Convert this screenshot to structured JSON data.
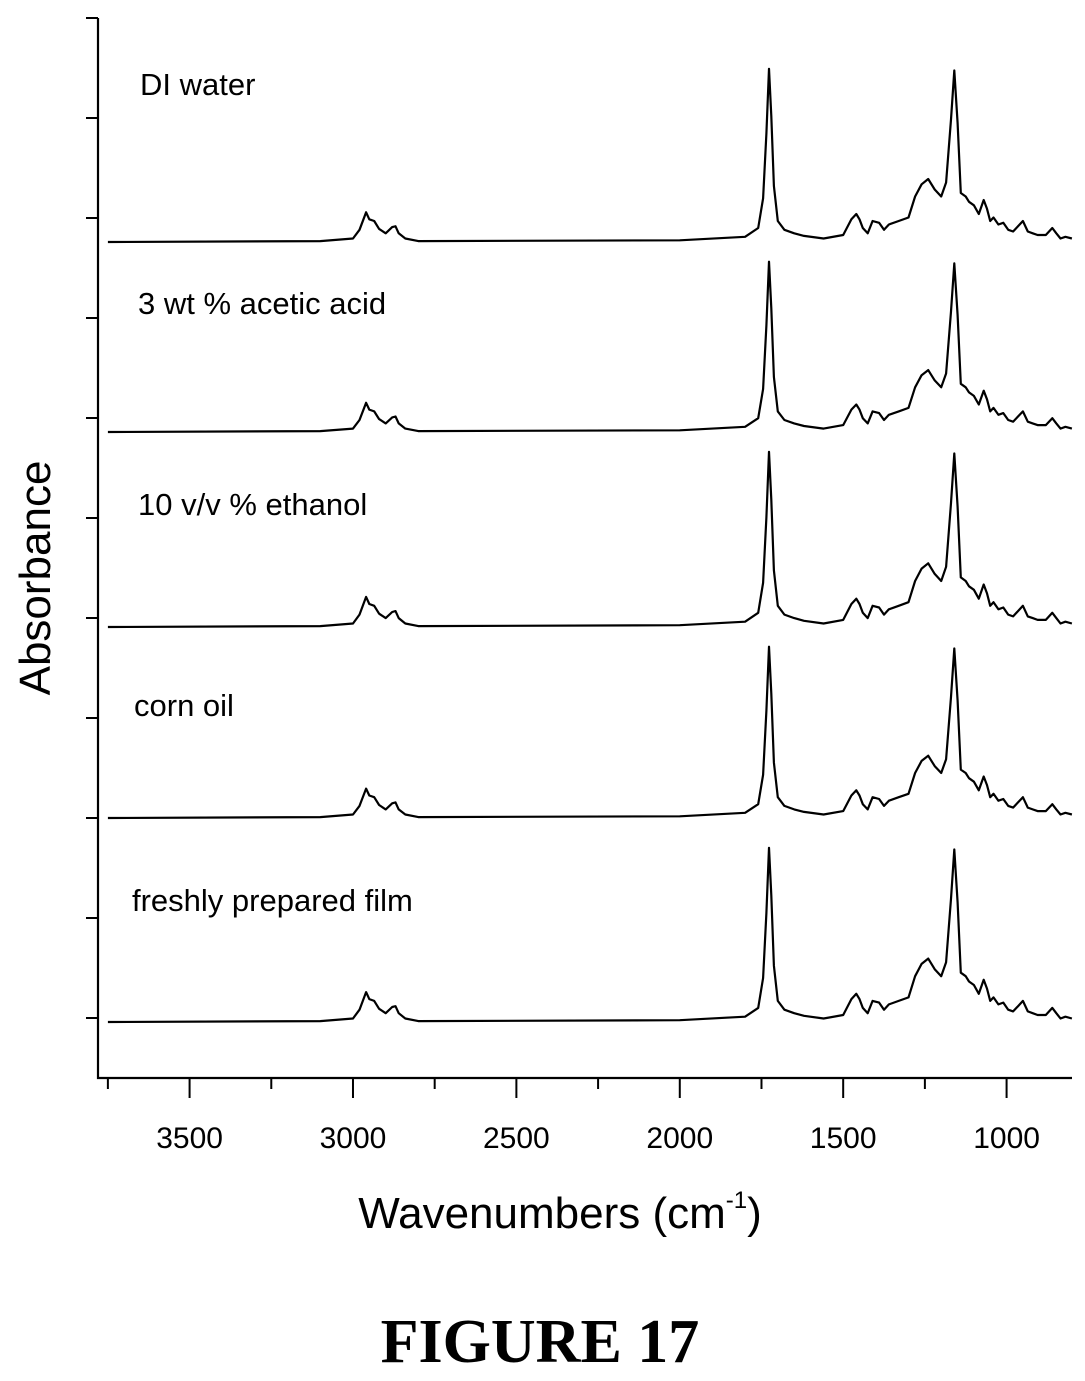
{
  "figure_title": "FIGURE 17",
  "chart_data": {
    "type": "line",
    "xlabel_main": "Wavenumbers (cm",
    "xlabel_sup": "-1",
    "xlabel_close": ")",
    "ylabel": "Absorbance",
    "xlim": [
      3750,
      800
    ],
    "x_reversed": true,
    "x_ticks": [
      "3500",
      "3000",
      "2500",
      "2000",
      "1500",
      "1000"
    ],
    "x_tick_values": [
      3500,
      3000,
      2500,
      2000,
      1500,
      1000
    ],
    "y_tick_labels_shown": false,
    "stacked_offset": true,
    "series": [
      {
        "name": "DI water"
      },
      {
        "name": "3 wt % acetic acid"
      },
      {
        "name": "10 v/v % ethanol"
      },
      {
        "name": "corn oil"
      },
      {
        "name": "freshly prepared film"
      }
    ],
    "spectrum_points": {
      "x": [
        3750,
        3100,
        3000,
        2980,
        2960,
        2950,
        2935,
        2920,
        2900,
        2880,
        2870,
        2860,
        2840,
        2800,
        2000,
        1800,
        1760,
        1745,
        1735,
        1727,
        1720,
        1712,
        1700,
        1680,
        1650,
        1620,
        1560,
        1500,
        1475,
        1460,
        1450,
        1440,
        1425,
        1410,
        1390,
        1375,
        1360,
        1330,
        1300,
        1280,
        1260,
        1240,
        1220,
        1200,
        1185,
        1170,
        1160,
        1150,
        1140,
        1125,
        1115,
        1100,
        1085,
        1070,
        1060,
        1050,
        1040,
        1025,
        1010,
        995,
        980,
        965,
        950,
        935,
        920,
        905,
        880,
        860,
        848,
        835,
        820,
        800
      ],
      "y": [
        0.0,
        0.005,
        0.02,
        0.07,
        0.17,
        0.13,
        0.12,
        0.075,
        0.05,
        0.085,
        0.09,
        0.05,
        0.02,
        0.005,
        0.01,
        0.03,
        0.08,
        0.25,
        0.62,
        0.99,
        0.72,
        0.32,
        0.12,
        0.07,
        0.05,
        0.035,
        0.02,
        0.04,
        0.13,
        0.16,
        0.13,
        0.08,
        0.05,
        0.12,
        0.11,
        0.07,
        0.1,
        0.12,
        0.14,
        0.26,
        0.33,
        0.36,
        0.3,
        0.26,
        0.34,
        0.7,
        0.98,
        0.68,
        0.28,
        0.26,
        0.23,
        0.21,
        0.16,
        0.24,
        0.19,
        0.12,
        0.14,
        0.1,
        0.11,
        0.07,
        0.06,
        0.09,
        0.12,
        0.06,
        0.05,
        0.04,
        0.04,
        0.08,
        0.05,
        0.02,
        0.03,
        0.02
      ]
    }
  }
}
